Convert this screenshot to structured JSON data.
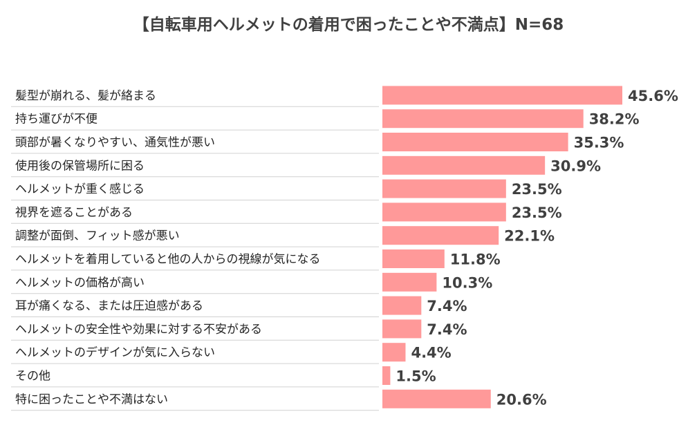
{
  "chart_data": {
    "type": "bar",
    "orientation": "horizontal",
    "title": "【自転車用ヘルメットの着用で困ったことや不満点】N=68",
    "categories": [
      "髪型が崩れる、髪が絡まる",
      "持ち運びが不便",
      "頭部が暑くなりやすい、通気性が悪い",
      "使用後の保管場所に困る",
      "ヘルメットが重く感じる",
      "視界を遮ることがある",
      "調整が面倒、フィット感が悪い",
      "ヘルメットを着用していると他の人からの視線が気になる",
      "ヘルメットの価格が高い",
      "耳が痛くなる、または圧迫感がある",
      "ヘルメットの安全性や効果に対する不安がある",
      "ヘルメットのデザインが気に入らない",
      "その他",
      "特に困ったことや不満はない"
    ],
    "values": [
      45.6,
      38.2,
      35.3,
      30.9,
      23.5,
      23.5,
      22.1,
      11.8,
      10.3,
      7.4,
      7.4,
      4.4,
      1.5,
      20.6
    ],
    "value_labels": [
      "45.6%",
      "38.2%",
      "35.3%",
      "30.9%",
      "23.5%",
      "23.5%",
      "22.1%",
      "11.8%",
      "10.3%",
      "7.4%",
      "7.4%",
      "4.4%",
      "1.5%",
      "20.6%"
    ],
    "unit": "%",
    "xlim": [
      0,
      45.6
    ],
    "bar_color": "#ff9999",
    "grid": false,
    "legend": "none"
  }
}
